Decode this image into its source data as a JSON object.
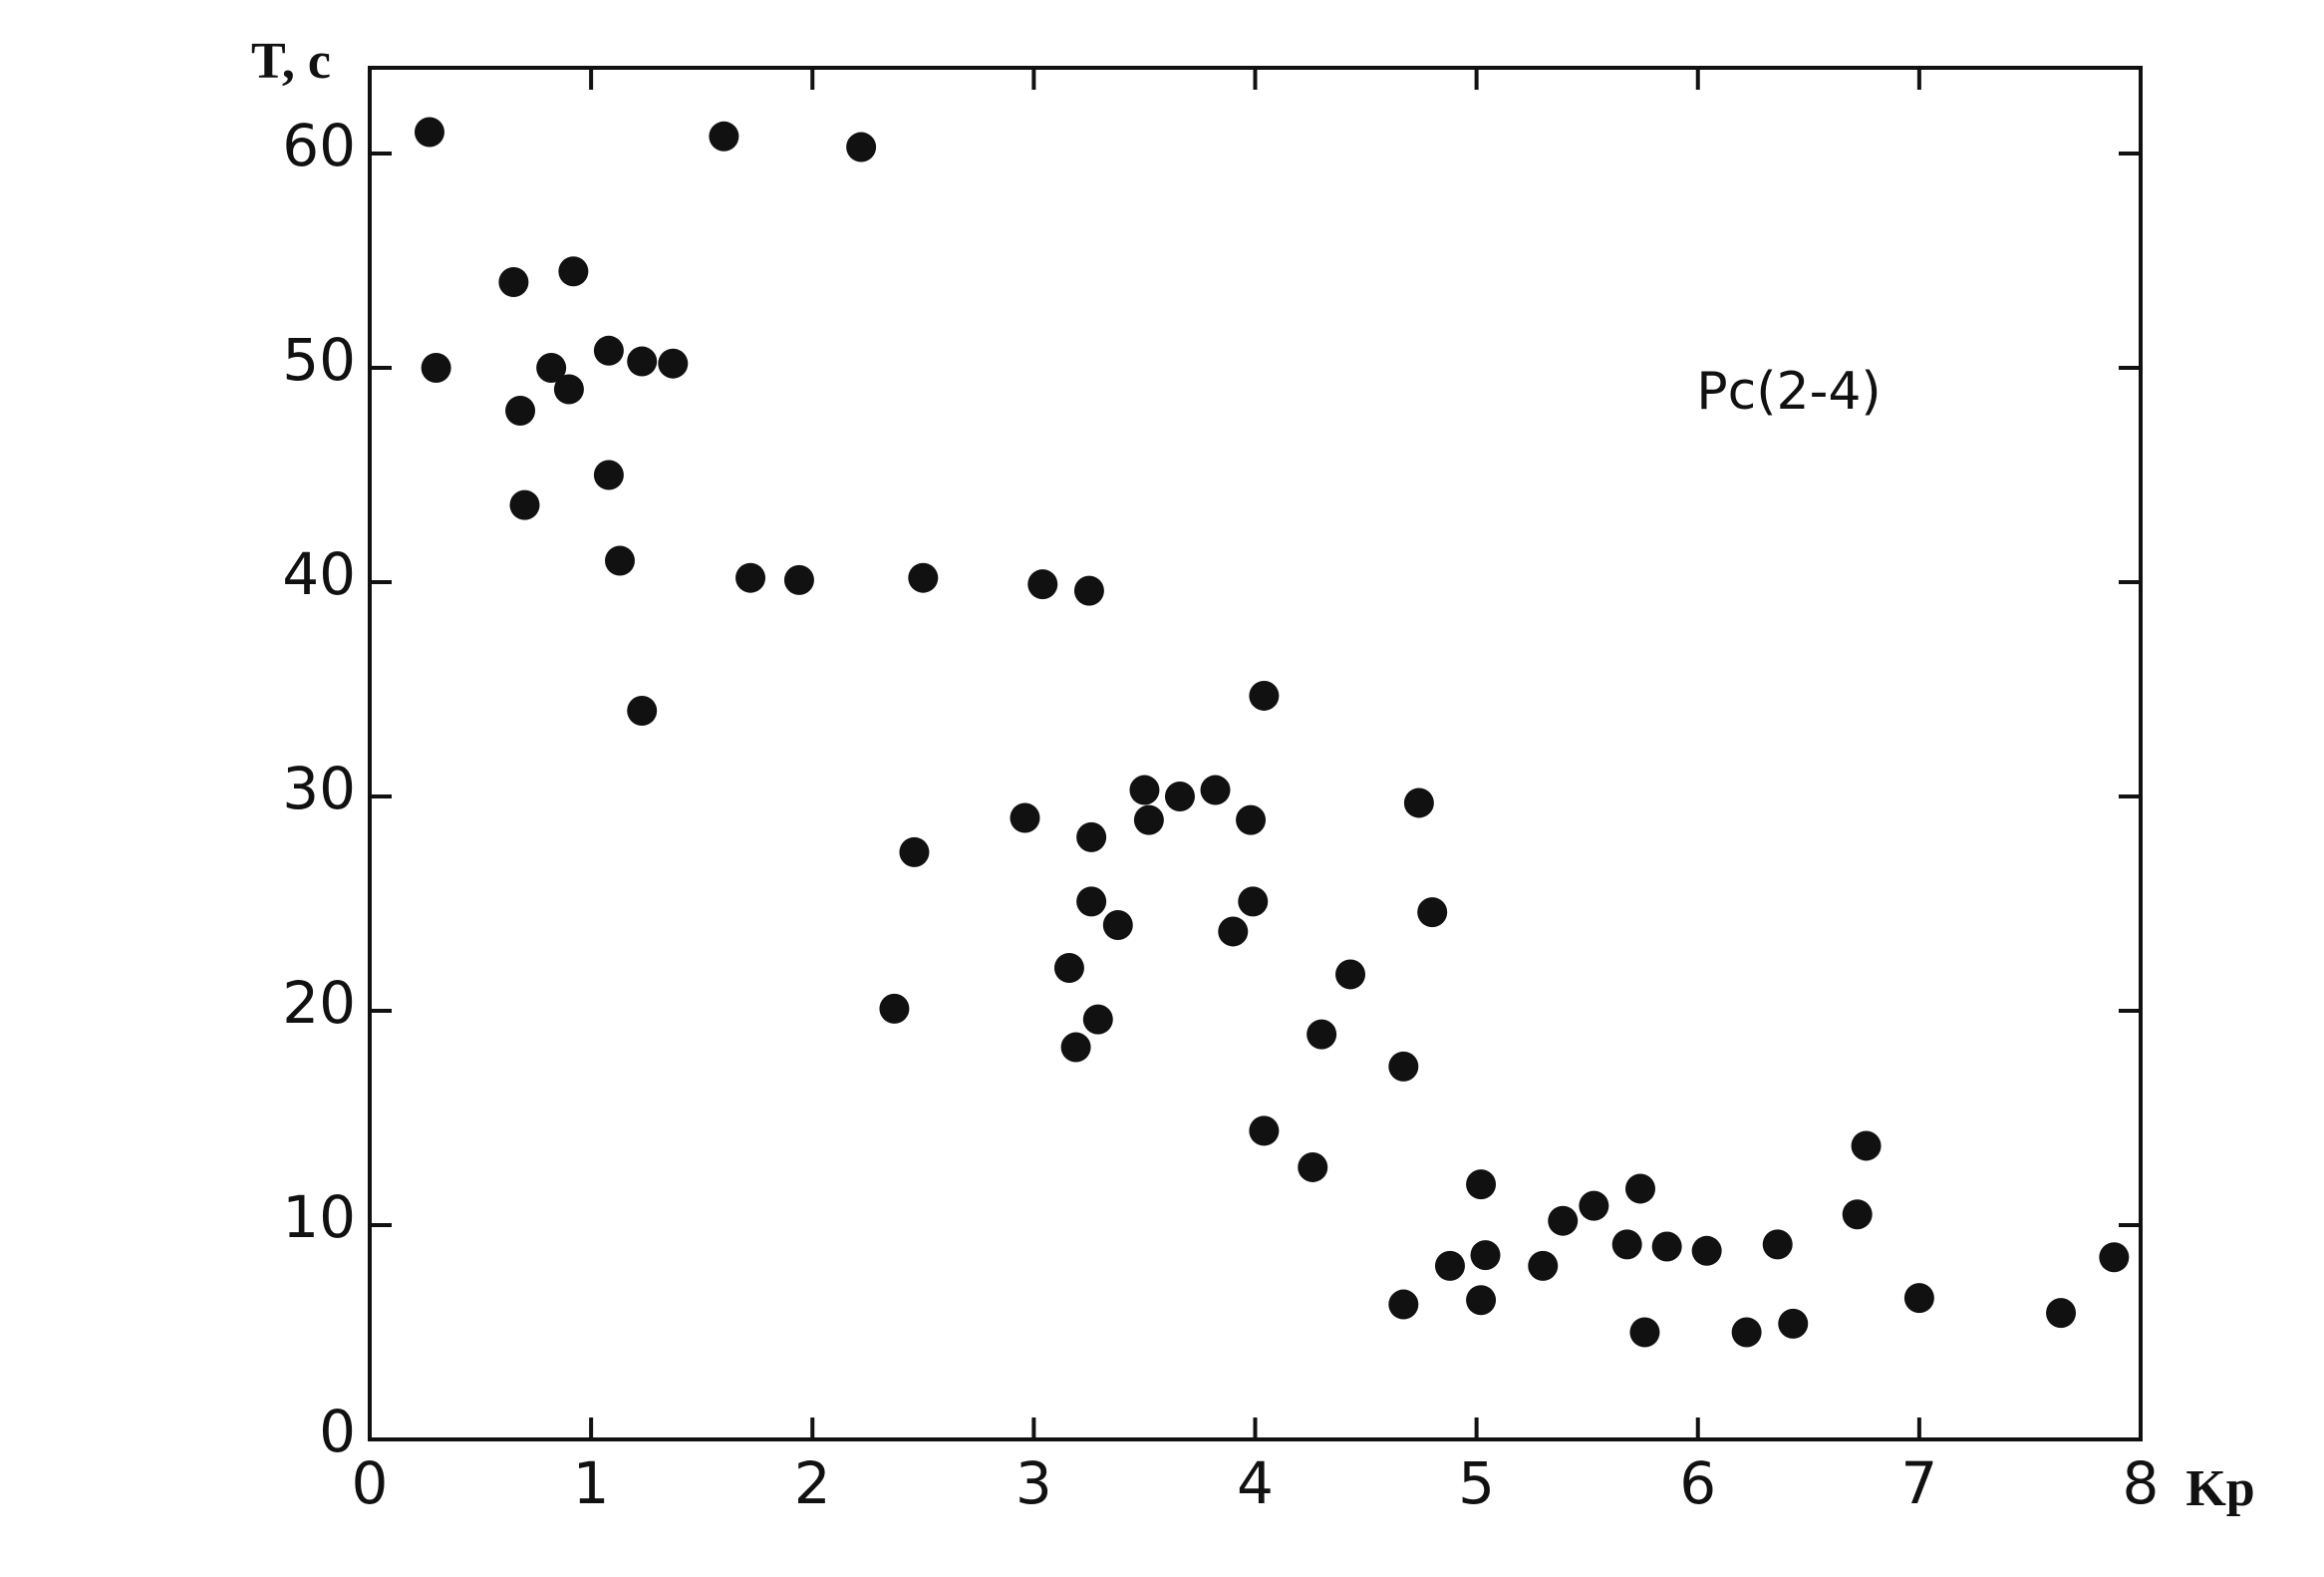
{
  "chart_data": {
    "type": "scatter",
    "y_label": "T, c",
    "x_label": "Kp",
    "annotation": "Pc(2-4)",
    "color": "#111111",
    "xlim": [
      0,
      8
    ],
    "xticks": [
      0,
      1,
      2,
      3,
      4,
      5,
      6,
      7,
      8
    ],
    "ylim": [
      0,
      64
    ],
    "yticks": [
      0,
      10,
      20,
      30,
      40,
      50,
      60
    ],
    "grid": false,
    "x": [
      0.27,
      0.3,
      0.65,
      0.68,
      0.7,
      0.82,
      0.9,
      0.92,
      1.08,
      1.08,
      1.13,
      1.23,
      1.23,
      1.37,
      1.6,
      1.72,
      1.94,
      2.22,
      2.37,
      2.46,
      2.5,
      2.96,
      3.04,
      3.16,
      3.19,
      3.25,
      3.26,
      3.26,
      3.29,
      3.38,
      3.5,
      3.52,
      3.66,
      3.82,
      3.9,
      3.98,
      3.99,
      4.04,
      4.04,
      4.26,
      4.3,
      4.43,
      4.67,
      4.67,
      4.74,
      4.8,
      4.88,
      5.02,
      5.02,
      5.04,
      5.3,
      5.39,
      5.53,
      5.68,
      5.74,
      5.76,
      5.86,
      6.04,
      6.22,
      6.36,
      6.43,
      6.72,
      6.76,
      7.0,
      7.64,
      7.88
    ],
    "values": [
      61,
      50,
      54,
      48,
      43.6,
      50,
      49,
      54.5,
      50.8,
      45,
      41,
      50.3,
      34,
      50.2,
      60.8,
      40.2,
      40.1,
      60.3,
      20.1,
      27.4,
      40.2,
      29,
      39.9,
      22,
      18.3,
      39.6,
      28.1,
      25.1,
      19.6,
      24,
      30.3,
      28.9,
      30,
      30.3,
      23.7,
      28.9,
      25.1,
      34.7,
      14.4,
      12.7,
      18.9,
      21.7,
      17.4,
      6.3,
      29.7,
      24.6,
      8.1,
      11.9,
      6.5,
      8.6,
      8.1,
      10.2,
      10.9,
      9.1,
      11.7,
      5,
      9,
      8.8,
      5,
      9.1,
      5.4,
      10.5,
      13.7,
      6.6,
      5.9,
      8.5
    ]
  }
}
